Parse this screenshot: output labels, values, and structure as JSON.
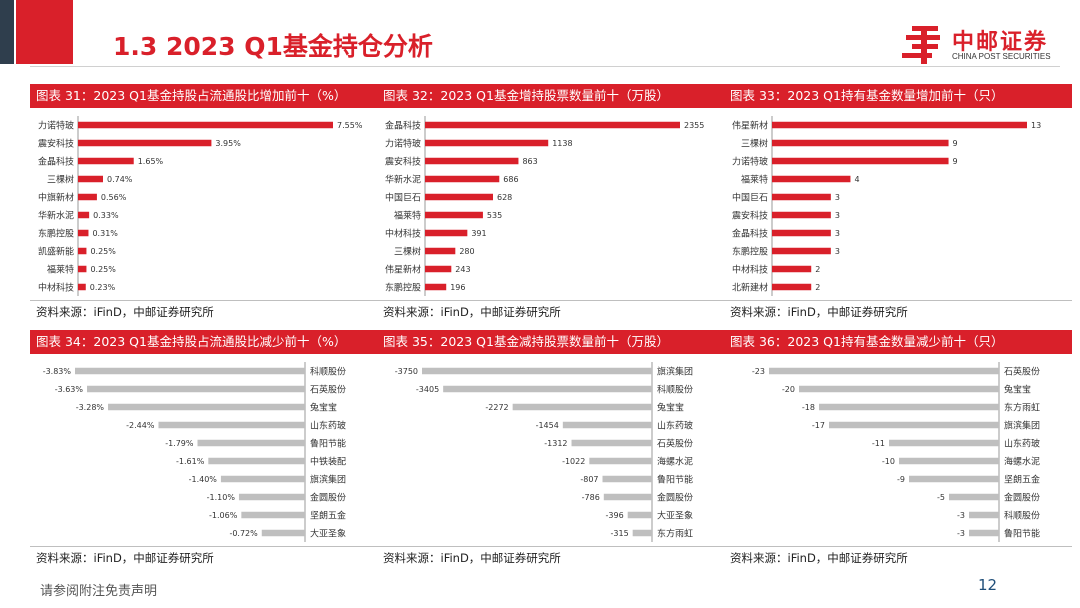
{
  "slide": {
    "title": "1.3 2023 Q1基金持仓分析",
    "footer_note": "请参阅附注免责声明",
    "page_number": "12"
  },
  "logo": {
    "cn": "中邮证券",
    "en": "CHINA POST SECURITIES",
    "icon": "china-post-logo-icon"
  },
  "colors": {
    "accent": "#d9202a",
    "dark": "#2f3e4d",
    "positive_bar": "#d9202a",
    "negative_bar": "#bfbfbf"
  },
  "panels": [
    {
      "id": "p31",
      "header": "图表 31：2023 Q1基金持股占流通股比增加前十（%）",
      "source": "资料来源：iFinD，中邮证券研究所",
      "chart_data": {
        "type": "bar",
        "orientation": "horizontal",
        "categories": [
          "力诺特玻",
          "震安科技",
          "金晶科技",
          "三棵树",
          "中旗新材",
          "华新水泥",
          "东鹏控股",
          "凯盛新能",
          "福莱特",
          "中材科技"
        ],
        "values": [
          7.55,
          3.95,
          1.65,
          0.74,
          0.56,
          0.33,
          0.31,
          0.25,
          0.25,
          0.23
        ],
        "labels": [
          "7.55%",
          "3.95%",
          "1.65%",
          "0.74%",
          "0.56%",
          "0.33%",
          "0.31%",
          "0.25%",
          "0.25%",
          "0.23%"
        ],
        "xlim": [
          0,
          7.55
        ]
      }
    },
    {
      "id": "p32",
      "header": "图表 32：2023 Q1基金增持股票数量前十（万股）",
      "source": "资料来源：iFinD，中邮证券研究所",
      "chart_data": {
        "type": "bar",
        "orientation": "horizontal",
        "categories": [
          "金晶科技",
          "力诺特玻",
          "震安科技",
          "华新水泥",
          "中国巨石",
          "福莱特",
          "中材科技",
          "三棵树",
          "伟星新材",
          "东鹏控股"
        ],
        "values": [
          2355,
          1138,
          863,
          686,
          628,
          535,
          391,
          280,
          243,
          196
        ],
        "labels": [
          "2355",
          "1138",
          "863",
          "686",
          "628",
          "535",
          "391",
          "280",
          "243",
          "196"
        ],
        "xlim": [
          0,
          2355
        ]
      }
    },
    {
      "id": "p33",
      "header": "图表 33：2023 Q1持有基金数量增加前十（只）",
      "source": "资料来源：iFinD，中邮证券研究所",
      "chart_data": {
        "type": "bar",
        "orientation": "horizontal",
        "categories": [
          "伟星新材",
          "三棵树",
          "力诺特玻",
          "福莱特",
          "中国巨石",
          "震安科技",
          "金晶科技",
          "东鹏控股",
          "中材科技",
          "北新建材"
        ],
        "values": [
          13,
          9,
          9,
          4,
          3,
          3,
          3,
          3,
          2,
          2
        ],
        "labels": [
          "13",
          "9",
          "9",
          "4",
          "3",
          "3",
          "3",
          "3",
          "2",
          "2"
        ],
        "xlim": [
          0,
          13
        ]
      }
    },
    {
      "id": "p34",
      "header": "图表 34：2023 Q1基金持股占流通股比减少前十（%）",
      "source": "资料来源：iFinD，中邮证券研究所",
      "chart_data": {
        "type": "bar",
        "orientation": "horizontal",
        "categories": [
          "科顺股份",
          "石英股份",
          "兔宝宝",
          "山东药玻",
          "鲁阳节能",
          "中铁装配",
          "旗滨集团",
          "金圆股份",
          "坚朗五金",
          "大亚圣象"
        ],
        "values": [
          -3.83,
          -3.63,
          -3.28,
          -2.44,
          -1.79,
          -1.61,
          -1.4,
          -1.1,
          -1.06,
          -0.72
        ],
        "labels": [
          "-3.83%",
          "-3.63%",
          "-3.28%",
          "-2.44%",
          "-1.79%",
          "-1.61%",
          "-1.40%",
          "-1.10%",
          "-1.06%",
          "-0.72%"
        ],
        "xlim": [
          -3.83,
          0
        ]
      }
    },
    {
      "id": "p35",
      "header": "图表 35：2023 Q1基金减持股票数量前十（万股）",
      "source": "资料来源：iFinD，中邮证券研究所",
      "chart_data": {
        "type": "bar",
        "orientation": "horizontal",
        "categories": [
          "旗滨集团",
          "科顺股份",
          "兔宝宝",
          "山东药玻",
          "石英股份",
          "海螺水泥",
          "鲁阳节能",
          "金圆股份",
          "大亚圣象",
          "东方雨虹"
        ],
        "values": [
          -3750,
          -3405,
          -2272,
          -1454,
          -1312,
          -1022,
          -807,
          -786,
          -396,
          -315
        ],
        "labels": [
          "-3750",
          "-3405",
          "-2272",
          "-1454",
          "-1312",
          "-1022",
          "-807",
          "-786",
          "-396",
          "-315"
        ],
        "xlim": [
          -3750,
          0
        ]
      }
    },
    {
      "id": "p36",
      "header": "图表 36：2023 Q1持有基金数量减少前十（只）",
      "source": "资料来源：iFinD，中邮证券研究所",
      "chart_data": {
        "type": "bar",
        "orientation": "horizontal",
        "categories": [
          "石英股份",
          "兔宝宝",
          "东方雨虹",
          "旗滨集团",
          "山东药玻",
          "海螺水泥",
          "坚朗五金",
          "金圆股份",
          "科顺股份",
          "鲁阳节能"
        ],
        "values": [
          -23,
          -20,
          -18,
          -17,
          -11,
          -10,
          -9,
          -5,
          -3,
          -3
        ],
        "labels": [
          "-23",
          "-20",
          "-18",
          "-17",
          "-11",
          "-10",
          "-9",
          "-5",
          "-3",
          "-3"
        ],
        "xlim": [
          -23,
          0
        ]
      }
    }
  ]
}
